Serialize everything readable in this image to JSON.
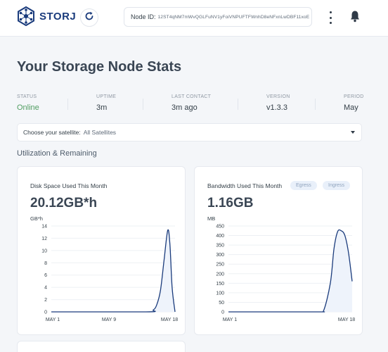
{
  "header": {
    "logo_text": "STORJ",
    "node_id_label": "Node ID:",
    "node_id_value": "12ST4qNM7mWvQGLFuNV1yFoiVNPUFTFWnhD8eNFxnLwDBF11xoE",
    "icons": [
      "storj-logo-icon",
      "refresh-icon",
      "kebab-menu-icon",
      "bell-icon"
    ]
  },
  "page_title": "Your Storage Node Stats",
  "stats": [
    {
      "label": "STATUS",
      "value": "Online"
    },
    {
      "label": "UPTIME",
      "value": "3m"
    },
    {
      "label": "LAST CONTACT",
      "value": "3m ago"
    },
    {
      "label": "VERSION",
      "value": "v1.3.3"
    },
    {
      "label": "PERIOD",
      "value": "May"
    }
  ],
  "satellite": {
    "label": "Choose your satellite:",
    "value": "All Satellites"
  },
  "section_title": "Utilization & Remaining",
  "colors": {
    "accent": "#1a3b7c",
    "online": "#519e62",
    "line": "#1a3b7c",
    "area": "#eef3fb"
  },
  "disk_card": {
    "title": "Disk Space Used This Month",
    "value": "20.12GB*h"
  },
  "bandwidth_card": {
    "title": "Bandwidth Used This Month",
    "value": "1.16GB",
    "tabs": [
      "Egress",
      "Ingress"
    ]
  },
  "chart_data": [
    {
      "type": "area",
      "ylabel": "GB*h",
      "ylim": [
        0,
        14
      ],
      "yticks": [
        0,
        2,
        4,
        6,
        8,
        10,
        12,
        14
      ],
      "xticks": [
        "MAY 1",
        "MAY 9",
        "MAY 18"
      ],
      "xlim": [
        1,
        18
      ],
      "x": [
        1,
        14,
        15,
        15.5,
        16,
        16.5,
        17,
        17.3,
        17.6,
        18
      ],
      "values": [
        0,
        0,
        0.3,
        1.2,
        3.5,
        8.5,
        13.3,
        11,
        4,
        0
      ],
      "grid": true
    },
    {
      "type": "area",
      "ylabel": "MB",
      "ylim": [
        0,
        450
      ],
      "yticks": [
        0,
        50,
        100,
        150,
        200,
        250,
        300,
        350,
        400,
        450
      ],
      "xticks": [
        "MAY 1",
        "MAY 18"
      ],
      "xlim": [
        1,
        18
      ],
      "x": [
        1,
        13,
        14,
        15,
        15.5,
        16,
        16.5,
        17,
        17.5,
        18
      ],
      "values": [
        0,
        0,
        0,
        150,
        330,
        420,
        425,
        400,
        310,
        160
      ],
      "grid": true
    }
  ]
}
